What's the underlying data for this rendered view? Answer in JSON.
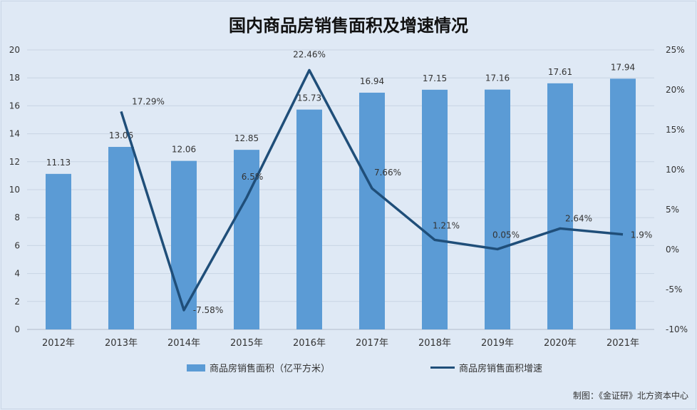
{
  "chart_data": {
    "type": "bar",
    "title": "国内商品房销售面积及增速情况",
    "categories": [
      "2012年",
      "2013年",
      "2014年",
      "2015年",
      "2016年",
      "2017年",
      "2018年",
      "2019年",
      "2020年",
      "2021年"
    ],
    "series": [
      {
        "name": "商品房销售面积（亿平方米）",
        "type": "bar",
        "axis": "left",
        "color": "#5b9bd5",
        "values": [
          11.13,
          13.06,
          12.06,
          12.85,
          15.73,
          16.94,
          17.15,
          17.16,
          17.61,
          17.94
        ],
        "labels": [
          "11.13",
          "13.06",
          "12.06",
          "12.85",
          "15.73",
          "16.94",
          "17.15",
          "17.16",
          "17.61",
          "17.94"
        ]
      },
      {
        "name": "商品房销售面积增速",
        "type": "line",
        "axis": "right",
        "color": "#1f4e79",
        "values": [
          null,
          17.29,
          -7.58,
          6.5,
          22.46,
          7.66,
          1.21,
          0.05,
          2.64,
          1.9
        ],
        "labels": [
          "",
          "17.29%",
          "-7.58%",
          "6.5%",
          "22.46%",
          "7.66%",
          "1.21%",
          "0.05%",
          "2.64%",
          "1.9%"
        ]
      }
    ],
    "yaxis_left": {
      "ylim": [
        0,
        20
      ],
      "ticks": [
        "0",
        "2",
        "4",
        "6",
        "8",
        "10",
        "12",
        "14",
        "16",
        "18",
        "20"
      ]
    },
    "yaxis_right": {
      "ylim": [
        -10,
        25
      ],
      "ticks": [
        "-10%",
        "-5%",
        "0%",
        "5%",
        "10%",
        "15%",
        "20%",
        "25%"
      ]
    },
    "grid": true,
    "legend": "bottom"
  },
  "footer": "制图：《金证研》北方资本中心"
}
